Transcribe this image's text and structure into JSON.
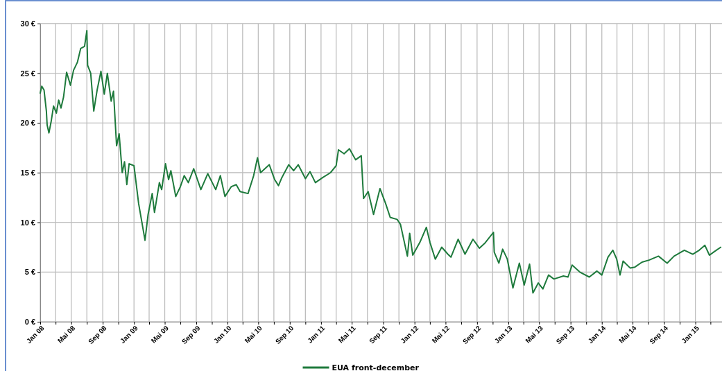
{
  "chart_data": {
    "type": "line",
    "grid": true,
    "legend": "bottom",
    "marker": "none",
    "line_style": "solid",
    "xlim": [
      "2008-01-01",
      "2015-04-15"
    ],
    "xticks": [
      {
        "value": "2008-01",
        "label": "Jan 08"
      },
      {
        "value": "2008-03",
        "label": null
      },
      {
        "value": "2008-05",
        "label": "Mai 08"
      },
      {
        "value": "2008-07",
        "label": null
      },
      {
        "value": "2008-09",
        "label": "Sep 08"
      },
      {
        "value": "2008-11",
        "label": null
      },
      {
        "value": "2009-01",
        "label": "Jan 09"
      },
      {
        "value": "2009-03",
        "label": null
      },
      {
        "value": "2009-05",
        "label": "Mai 09"
      },
      {
        "value": "2009-07",
        "label": null
      },
      {
        "value": "2009-09",
        "label": "Sep 09"
      },
      {
        "value": "2009-11",
        "label": null
      },
      {
        "value": "2010-01",
        "label": "Jan 10"
      },
      {
        "value": "2010-03",
        "label": null
      },
      {
        "value": "2010-05",
        "label": "Mai 10"
      },
      {
        "value": "2010-07",
        "label": null
      },
      {
        "value": "2010-09",
        "label": "Sep 10"
      },
      {
        "value": "2010-11",
        "label": null
      },
      {
        "value": "2011-01",
        "label": "Jan 11"
      },
      {
        "value": "2011-03",
        "label": null
      },
      {
        "value": "2011-05",
        "label": "Mai 11"
      },
      {
        "value": "2011-07",
        "label": null
      },
      {
        "value": "2011-09",
        "label": "Sep 11"
      },
      {
        "value": "2011-11",
        "label": null
      },
      {
        "value": "2012-01",
        "label": "Jan 12"
      },
      {
        "value": "2012-03",
        "label": null
      },
      {
        "value": "2012-05",
        "label": "Mai 12"
      },
      {
        "value": "2012-07",
        "label": null
      },
      {
        "value": "2012-09",
        "label": "Sep 12"
      },
      {
        "value": "2012-11",
        "label": null
      },
      {
        "value": "2013-01",
        "label": "Jan 13"
      },
      {
        "value": "2013-03",
        "label": null
      },
      {
        "value": "2013-05",
        "label": "Mai 13"
      },
      {
        "value": "2013-07",
        "label": null
      },
      {
        "value": "2013-09",
        "label": "Sep 13"
      },
      {
        "value": "2013-11",
        "label": null
      },
      {
        "value": "2014-01",
        "label": "Jan 14"
      },
      {
        "value": "2014-03",
        "label": null
      },
      {
        "value": "2014-05",
        "label": "Mai 14"
      },
      {
        "value": "2014-07",
        "label": null
      },
      {
        "value": "2014-09",
        "label": "Sep 14"
      },
      {
        "value": "2014-11",
        "label": null
      },
      {
        "value": "2015-01",
        "label": "Jan 15"
      },
      {
        "value": "2015-03",
        "label": null
      }
    ],
    "ylim": [
      0,
      30
    ],
    "yticks": [
      {
        "value": 0,
        "label": "0 €"
      },
      {
        "value": 5,
        "label": "5 €"
      },
      {
        "value": 10,
        "label": "10 €"
      },
      {
        "value": 15,
        "label": "15 €"
      },
      {
        "value": 20,
        "label": "20 €"
      },
      {
        "value": 25,
        "label": "25 €"
      },
      {
        "value": 30,
        "label": "30 €"
      }
    ],
    "x": [
      "2008-01-01",
      "2008-01-07",
      "2008-01-16",
      "2008-01-25",
      "2008-01-28",
      "2008-02-04",
      "2008-02-13",
      "2008-02-22",
      "2008-03-04",
      "2008-03-13",
      "2008-03-22",
      "2008-04-01",
      "2008-04-13",
      "2008-04-28",
      "2008-05-10",
      "2008-05-25",
      "2008-06-07",
      "2008-06-22",
      "2008-07-01",
      "2008-07-04",
      "2008-07-16",
      "2008-07-28",
      "2008-08-10",
      "2008-08-25",
      "2008-09-07",
      "2008-09-19",
      "2008-10-04",
      "2008-10-13",
      "2008-10-25",
      "2008-11-04",
      "2008-11-16",
      "2008-11-25",
      "2008-12-04",
      "2008-12-13",
      "2009-01-01",
      "2009-01-19",
      "2009-02-13",
      "2009-02-25",
      "2009-03-13",
      "2009-03-22",
      "2009-04-10",
      "2009-04-19",
      "2009-05-04",
      "2009-05-16",
      "2009-05-25",
      "2009-06-13",
      "2009-07-01",
      "2009-07-16",
      "2009-08-01",
      "2009-08-22",
      "2009-09-19",
      "2009-10-16",
      "2009-11-16",
      "2009-12-04",
      "2009-12-22",
      "2010-01-16",
      "2010-02-04",
      "2010-02-19",
      "2010-03-22",
      "2010-04-13",
      "2010-04-28",
      "2010-05-10",
      "2010-06-13",
      "2010-07-04",
      "2010-07-19",
      "2010-08-01",
      "2010-08-28",
      "2010-09-16",
      "2010-10-04",
      "2010-11-01",
      "2010-11-19",
      "2010-12-10",
      "2011-01-07",
      "2011-02-07",
      "2011-03-01",
      "2011-03-10",
      "2011-04-01",
      "2011-04-22",
      "2011-05-16",
      "2011-06-07",
      "2011-06-16",
      "2011-07-04",
      "2011-07-25",
      "2011-08-19",
      "2011-09-10",
      "2011-09-28",
      "2011-10-25",
      "2011-11-07",
      "2011-12-04",
      "2011-12-13",
      "2011-12-25",
      "2012-01-22",
      "2012-02-16",
      "2012-03-01",
      "2012-03-22",
      "2012-04-16",
      "2012-05-10",
      "2012-05-22",
      "2012-06-19",
      "2012-07-16",
      "2012-08-16",
      "2012-09-10",
      "2012-10-01",
      "2012-11-04",
      "2012-11-07",
      "2012-11-25",
      "2012-12-10",
      "2012-12-28",
      "2013-01-19",
      "2013-02-13",
      "2013-03-04",
      "2013-03-25",
      "2013-04-07",
      "2013-04-28",
      "2013-05-16",
      "2013-06-07",
      "2013-06-28",
      "2013-08-04",
      "2013-08-22",
      "2013-09-07",
      "2013-10-07",
      "2013-11-13",
      "2013-12-13",
      "2014-01-01",
      "2014-01-25",
      "2014-02-13",
      "2014-02-28",
      "2014-03-13",
      "2014-03-25",
      "2014-04-22",
      "2014-05-10",
      "2014-06-07",
      "2014-07-04",
      "2014-08-10",
      "2014-09-13",
      "2014-10-10",
      "2014-11-19",
      "2014-12-22",
      "2015-01-16",
      "2015-02-07",
      "2015-02-25",
      "2015-03-13",
      "2015-04-10"
    ],
    "series": [
      {
        "name": "EUA front-december",
        "color": "#1e7a3c",
        "values": [
          23.0,
          23.7,
          23.3,
          21.2,
          19.8,
          19.0,
          20.2,
          21.7,
          21.0,
          22.3,
          21.5,
          22.6,
          25.1,
          23.8,
          25.3,
          26.1,
          27.5,
          27.7,
          29.3,
          25.8,
          25.0,
          21.2,
          23.3,
          25.2,
          22.9,
          25.0,
          22.2,
          23.2,
          17.7,
          18.9,
          15.0,
          16.1,
          13.8,
          15.9,
          15.7,
          11.9,
          8.2,
          10.8,
          12.9,
          11.0,
          14.0,
          13.3,
          15.9,
          14.3,
          15.2,
          12.6,
          13.6,
          14.7,
          14.0,
          15.4,
          13.3,
          14.9,
          13.3,
          14.7,
          12.6,
          13.6,
          13.8,
          13.1,
          12.9,
          14.7,
          16.5,
          15.0,
          15.8,
          14.3,
          13.7,
          14.5,
          15.8,
          15.2,
          15.8,
          14.4,
          15.1,
          14.0,
          14.5,
          15.0,
          15.7,
          17.3,
          16.9,
          17.4,
          16.3,
          16.7,
          12.4,
          13.1,
          10.8,
          13.4,
          11.9,
          10.5,
          10.3,
          9.8,
          6.6,
          8.9,
          6.7,
          8.0,
          9.5,
          8.0,
          6.3,
          7.5,
          6.8,
          6.5,
          8.3,
          6.8,
          8.3,
          7.4,
          7.9,
          9.0,
          7.0,
          5.9,
          7.3,
          6.3,
          3.4,
          5.9,
          3.7,
          5.8,
          2.9,
          3.9,
          3.3,
          4.7,
          4.3,
          4.6,
          4.5,
          5.7,
          5.0,
          4.5,
          5.1,
          4.7,
          6.5,
          7.2,
          6.3,
          4.7,
          6.1,
          5.4,
          5.5,
          6.0,
          6.2,
          6.6,
          5.9,
          6.6,
          7.2,
          6.8,
          7.2,
          7.7,
          6.7,
          7.0,
          7.5
        ]
      }
    ]
  }
}
